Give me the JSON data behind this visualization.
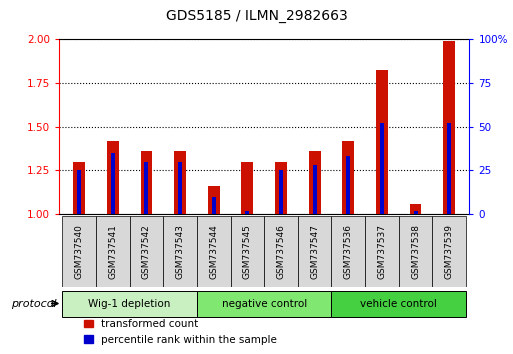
{
  "title": "GDS5185 / ILMN_2982663",
  "samples": [
    "GSM737540",
    "GSM737541",
    "GSM737542",
    "GSM737543",
    "GSM737544",
    "GSM737545",
    "GSM737546",
    "GSM737547",
    "GSM737536",
    "GSM737537",
    "GSM737538",
    "GSM737539"
  ],
  "transformed_counts": [
    1.3,
    1.42,
    1.36,
    1.36,
    1.16,
    1.3,
    1.3,
    1.36,
    1.42,
    1.82,
    1.06,
    1.99
  ],
  "percentile_ranks": [
    25,
    35,
    30,
    30,
    10,
    2,
    25,
    28,
    33,
    52,
    2,
    52
  ],
  "groups": [
    {
      "label": "Wig-1 depletion",
      "start": 0,
      "end": 4,
      "color": "#c8f0c0"
    },
    {
      "label": "negative control",
      "start": 4,
      "end": 8,
      "color": "#80e870"
    },
    {
      "label": "vehicle control",
      "start": 8,
      "end": 12,
      "color": "#44d040"
    }
  ],
  "ylim_left": [
    1.0,
    2.0
  ],
  "ylim_right": [
    0,
    100
  ],
  "yticks_left": [
    1.0,
    1.25,
    1.5,
    1.75,
    2.0
  ],
  "yticks_right": [
    0,
    25,
    50,
    75,
    100
  ],
  "ytick_labels_right": [
    "0",
    "25",
    "50",
    "75",
    "100%"
  ],
  "bar_color_red": "#cc1100",
  "bar_color_blue": "#0000cc",
  "red_bar_width": 0.35,
  "blue_bar_width": 0.12,
  "protocol_label": "protocol",
  "legend_red": "transformed count",
  "legend_blue": "percentile rank within the sample",
  "title_fontsize": 10,
  "tick_fontsize": 7.5,
  "label_fontsize": 8
}
